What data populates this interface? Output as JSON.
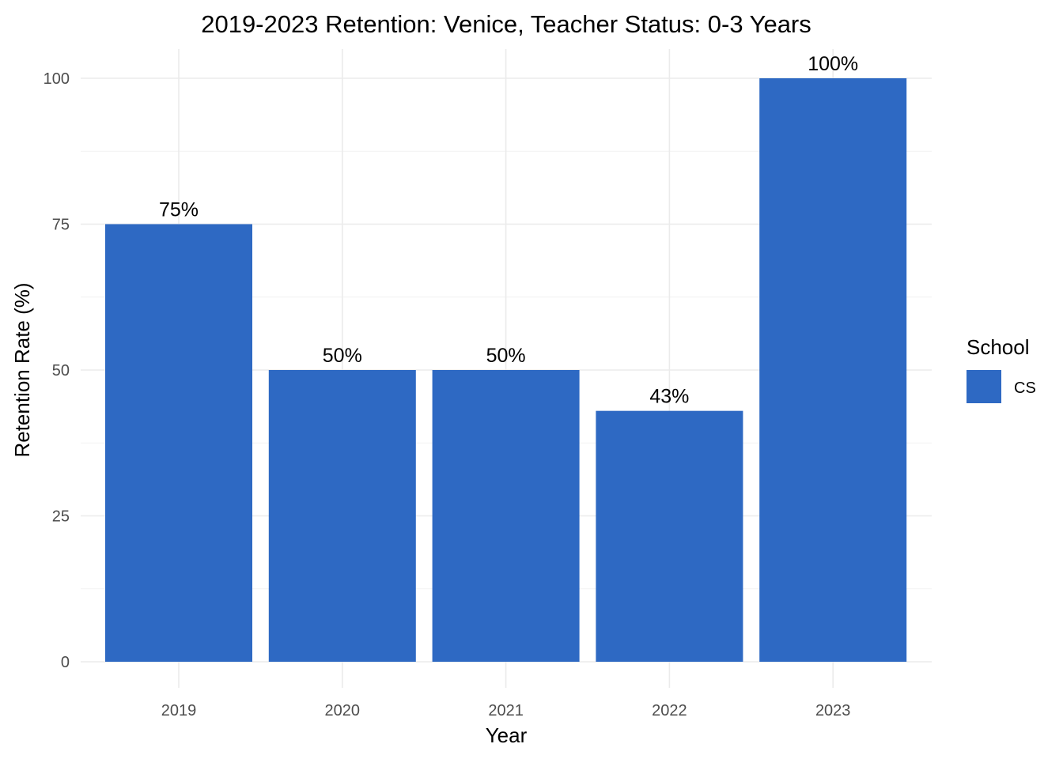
{
  "chart_data": {
    "type": "bar",
    "title": "2019-2023 Retention: Venice, Teacher Status: 0-3 Years",
    "xlabel": "Year",
    "ylabel": "Retention Rate (%)",
    "categories": [
      "2019",
      "2020",
      "2021",
      "2022",
      "2023"
    ],
    "series": [
      {
        "name": "CS",
        "values": [
          75,
          50,
          50,
          43,
          100
        ],
        "labels": [
          "75%",
          "50%",
          "50%",
          "43%",
          "100%"
        ],
        "color": "#2e69c3"
      }
    ],
    "ylim": [
      0,
      100
    ],
    "yticks": [
      0,
      25,
      50,
      75,
      100
    ],
    "grid": true,
    "legend": {
      "title": "School",
      "placement": "right"
    }
  }
}
